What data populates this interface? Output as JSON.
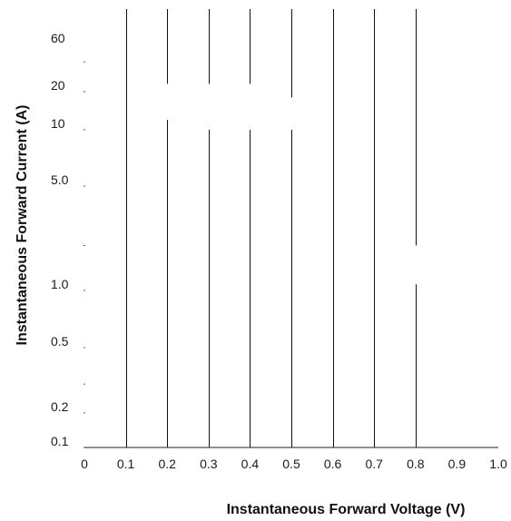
{
  "chart_data": {
    "type": "line",
    "xlabel": "Instantaneous Forward Voltage (V)",
    "ylabel": "Instantaneous Forward Current (A)",
    "xlim": [
      0,
      1.0
    ],
    "x_ticks": [
      {
        "value": 0,
        "label": "0"
      },
      {
        "value": 0.1,
        "label": "0.1"
      },
      {
        "value": 0.2,
        "label": "0.2"
      },
      {
        "value": 0.3,
        "label": "0.3"
      },
      {
        "value": 0.4,
        "label": "0.4"
      },
      {
        "value": 0.5,
        "label": "0.5"
      },
      {
        "value": 0.6,
        "label": "0.6"
      },
      {
        "value": 0.7,
        "label": "0.7"
      },
      {
        "value": 0.8,
        "label": "0.8"
      },
      {
        "value": 0.9,
        "label": "0.9"
      },
      {
        "value": 1.0,
        "label": "1.0"
      }
    ],
    "y_ticks": [
      {
        "value": 0.1,
        "label": "0.1"
      },
      {
        "value": 0.2,
        "label": "0.2"
      },
      {
        "value": 0.5,
        "label": "0.5"
      },
      {
        "value": 1.0,
        "label": "1.0"
      },
      {
        "value": 5.0,
        "label": "5.0"
      },
      {
        "value": 10,
        "label": "10"
      },
      {
        "value": 20,
        "label": "20"
      },
      {
        "value": 60,
        "label": "60"
      }
    ],
    "gridlines": [
      {
        "x": 0.1,
        "segments": [
          [
            0.1,
            100
          ]
        ]
      },
      {
        "x": 0.2,
        "segments": [
          [
            0.1,
            12
          ],
          [
            24,
            100
          ]
        ]
      },
      {
        "x": 0.3,
        "segments": [
          [
            0.1,
            10
          ],
          [
            24,
            100
          ]
        ]
      },
      {
        "x": 0.4,
        "segments": [
          [
            0.1,
            10
          ],
          [
            24,
            100
          ]
        ]
      },
      {
        "x": 0.5,
        "segments": [
          [
            0.1,
            10
          ],
          [
            18,
            100
          ]
        ]
      },
      {
        "x": 0.6,
        "segments": [
          [
            0.1,
            100
          ]
        ]
      },
      {
        "x": 0.7,
        "segments": [
          [
            0.1,
            100
          ]
        ]
      },
      {
        "x": 0.8,
        "segments": [
          [
            0.1,
            1.1
          ],
          [
            2.0,
            100
          ]
        ]
      }
    ],
    "grid": true,
    "legend": "none"
  }
}
